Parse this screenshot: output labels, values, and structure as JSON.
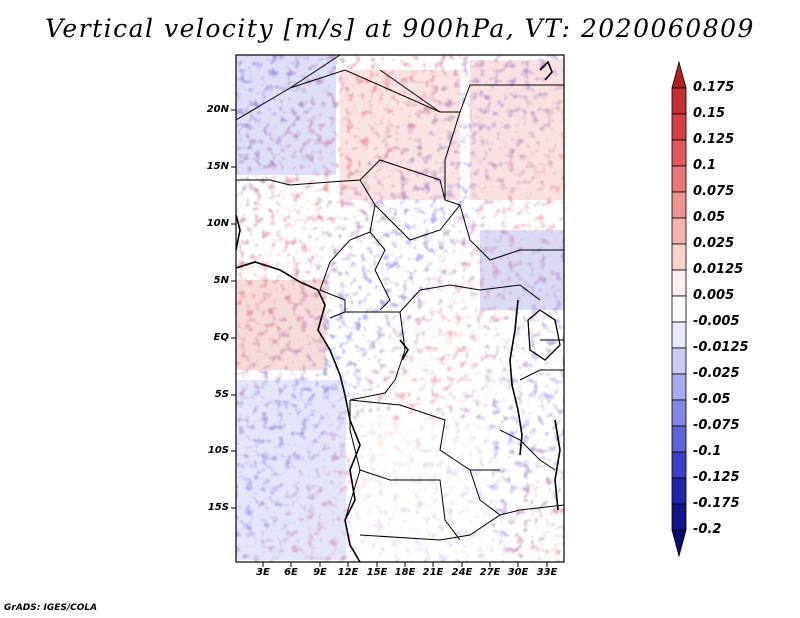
{
  "title": "Vertical velocity [m/s] at 900hPa, VT: 2020060809",
  "footer": "GrADS: IGES/COLA",
  "map": {
    "lat_labels": [
      "20N",
      "15N",
      "10N",
      "5N",
      "EQ",
      "5S",
      "10S",
      "15S"
    ],
    "lon_labels": [
      "3E",
      "6E",
      "9E",
      "12E",
      "15E",
      "18E",
      "21E",
      "24E",
      "27E",
      "30E",
      "33E"
    ]
  },
  "colorbar": {
    "levels": [
      "0.175",
      "0.15",
      "0.125",
      "0.1",
      "0.075",
      "0.05",
      "0.025",
      "0.0125",
      "0.005",
      "-0.005",
      "-0.0125",
      "-0.025",
      "-0.05",
      "-0.075",
      "-0.1",
      "-0.125",
      "-0.175",
      "-0.2"
    ],
    "colors": [
      "#b22222",
      "#c53030",
      "#d94040",
      "#e35a5a",
      "#eb7676",
      "#f29393",
      "#f6b1b1",
      "#fad0d0",
      "#feeeee",
      "#ffffff",
      "#e8e8fb",
      "#cacaf5",
      "#a9a9ef",
      "#8585e6",
      "#6161d8",
      "#3f3fc4",
      "#2424a8",
      "#141488",
      "#0a0a6e"
    ]
  }
}
